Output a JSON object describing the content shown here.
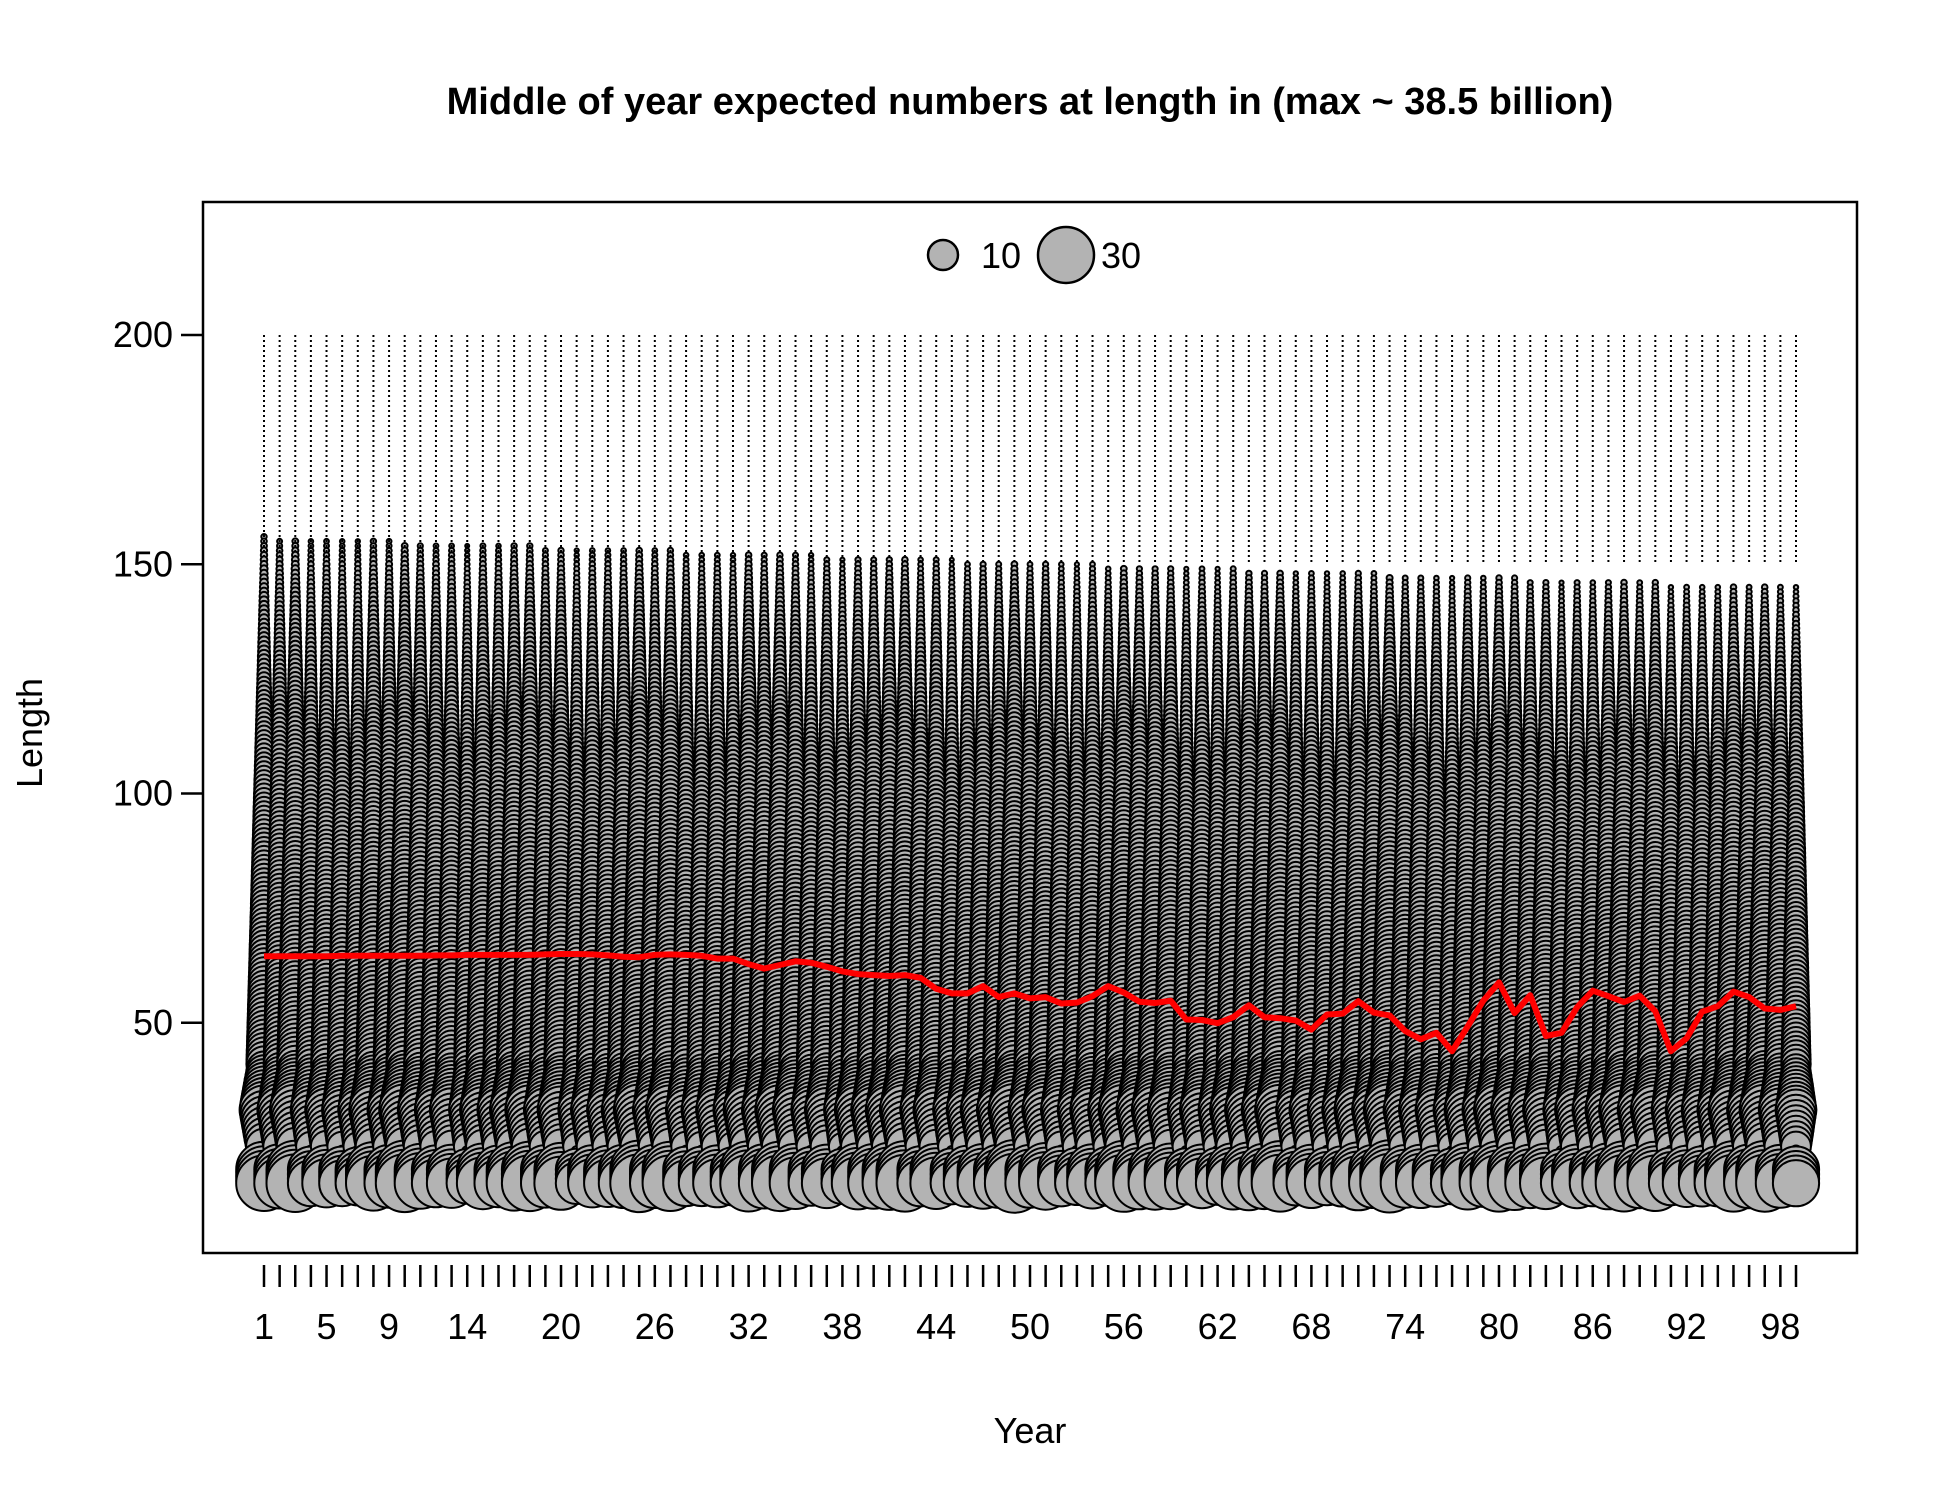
{
  "chart_data": {
    "type": "scatter",
    "subtype": "bubble",
    "title": "Middle of year expected numbers at length in (max ~ 38.5 billion)",
    "xlabel": "Year",
    "ylabel": "Length",
    "xlim": [
      1,
      99
    ],
    "ylim": [
      0,
      225
    ],
    "x_tick_labels": [
      "1",
      "5",
      "9",
      "14",
      "20",
      "26",
      "32",
      "38",
      "44",
      "50",
      "56",
      "62",
      "68",
      "74",
      "80",
      "86",
      "92",
      "98"
    ],
    "y_tick_labels": [
      "50",
      "100",
      "150",
      "200"
    ],
    "grid": false,
    "legend": {
      "placement": "top-center",
      "sizes": [
        10,
        30
      ],
      "labels": [
        "10",
        "30"
      ]
    },
    "colors": {
      "bubble_fill": "#b3b3b3",
      "bubble_edge": "#000000",
      "mean_line": "#ff0000"
    },
    "length_bins": {
      "min": 15,
      "max": 200,
      "step": 1
    },
    "series": [
      {
        "name": "",
        "kind": "mean_length_line",
        "x": [
          1,
          2,
          3,
          4,
          5,
          6,
          7,
          8,
          9,
          10,
          11,
          12,
          13,
          14,
          15,
          16,
          17,
          18,
          19,
          20,
          21,
          22,
          23,
          24,
          25,
          26,
          27,
          28,
          29,
          30,
          31,
          32,
          33,
          34,
          35,
          36,
          37,
          38,
          39,
          40,
          41,
          42,
          43,
          44,
          45,
          46,
          47,
          48,
          49,
          50,
          51,
          52,
          53,
          54,
          55,
          56,
          57,
          58,
          59,
          60,
          61,
          62,
          63,
          64,
          65,
          66,
          67,
          68,
          69,
          70,
          71,
          72,
          73,
          74,
          75,
          76,
          77,
          78,
          79,
          80,
          81,
          82,
          83,
          84,
          85,
          86,
          87,
          88,
          89,
          90,
          91,
          92,
          93,
          94,
          95,
          96,
          97,
          98,
          99
        ],
        "y": [
          64.5,
          64.5,
          64.5,
          64.5,
          64.5,
          64.6,
          64.6,
          64.6,
          64.6,
          64.6,
          64.6,
          64.7,
          64.7,
          64.8,
          64.8,
          64.8,
          64.8,
          64.8,
          64.9,
          65.0,
          65.0,
          64.9,
          64.7,
          64.4,
          64.3,
          64.8,
          64.9,
          64.8,
          64.6,
          64.0,
          64.0,
          62.8,
          61.8,
          62.6,
          63.4,
          63.1,
          62.2,
          61.2,
          60.6,
          60.4,
          60.2,
          60.4,
          59.8,
          57.4,
          56.4,
          56.4,
          58.0,
          55.6,
          56.4,
          55.3,
          55.6,
          54.2,
          54.4,
          55.8,
          58.0,
          56.6,
          54.6,
          54.3,
          54.8,
          50.7,
          50.6,
          49.9,
          51.2,
          53.8,
          51.2,
          51.0,
          50.5,
          48.5,
          51.8,
          52.0,
          54.7,
          52.2,
          51.6,
          48.2,
          46.4,
          47.8,
          43.8,
          49.2,
          54.8,
          58.8,
          52.1,
          56.0,
          47.1,
          47.8,
          53.4,
          57.0,
          55.8,
          54.5,
          55.9,
          52.5,
          43.8,
          46.6,
          52.4,
          53.6,
          56.8,
          55.6,
          53.1,
          52.8,
          53.6
        ]
      }
    ],
    "bubbles_description_values": {
      "recruit_length": 15,
      "juvenile_mode_length": 31,
      "adult_max_length_start": 156,
      "adult_max_length_end": 145
    }
  }
}
